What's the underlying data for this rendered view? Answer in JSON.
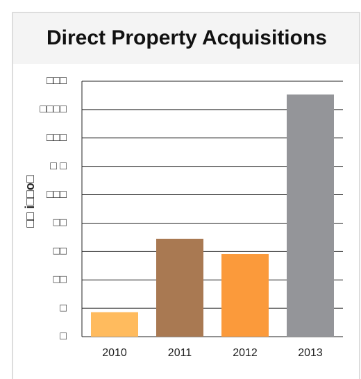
{
  "chart_data": {
    "type": "bar",
    "title": "Direct Property Acquisitions",
    "y_label": "□□ i□□o□",
    "categories": [
      "2010",
      "2011",
      "2012",
      "2013"
    ],
    "values": [
      86,
      345,
      291,
      853
    ],
    "colors": [
      "#ffbb5e",
      "#a97952",
      "#fb9a3b",
      "#949599"
    ],
    "ylim": [
      0,
      900
    ],
    "yticks": [
      {
        "value": 0,
        "label": "□"
      },
      {
        "value": 100,
        "label": "□"
      },
      {
        "value": 200,
        "label": "□□"
      },
      {
        "value": 300,
        "label": "□□"
      },
      {
        "value": 400,
        "label": "□□"
      },
      {
        "value": 500,
        "label": "□□□"
      },
      {
        "value": 600,
        "label": "□ □"
      },
      {
        "value": 700,
        "label": "□□□"
      },
      {
        "value": 800,
        "label": "□□□□"
      },
      {
        "value": 900,
        "label": "□□□"
      }
    ],
    "grid": true
  }
}
